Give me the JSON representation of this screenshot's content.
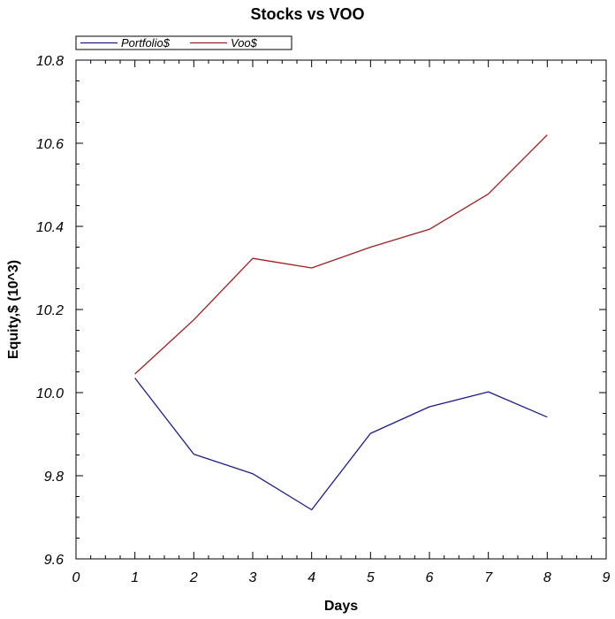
{
  "chart_data": {
    "type": "line",
    "title": "Stocks vs VOO",
    "xlabel": "Days",
    "ylabel": "Equity,$ (10^3)",
    "xlim": [
      0,
      9
    ],
    "ylim": [
      9.6,
      10.8
    ],
    "x_ticks": [
      "0",
      "1",
      "2",
      "3",
      "4",
      "5",
      "6",
      "7",
      "8",
      "9"
    ],
    "y_ticks": [
      "9.6",
      "9.8",
      "10.0",
      "10.2",
      "10.4",
      "10.6",
      "10.8"
    ],
    "grid": false,
    "legend_position": "top-left",
    "x": [
      1,
      2,
      3,
      4,
      5,
      6,
      7,
      8
    ],
    "series": [
      {
        "name": "Portfolio$",
        "color": "#1c1c8c",
        "values": [
          10.035,
          9.852,
          9.805,
          9.718,
          9.902,
          9.966,
          10.002,
          9.941
        ]
      },
      {
        "name": "Voo$",
        "color": "#a01e1e",
        "values": [
          10.045,
          10.175,
          10.323,
          10.3,
          10.35,
          10.393,
          10.478,
          10.62
        ]
      }
    ]
  }
}
